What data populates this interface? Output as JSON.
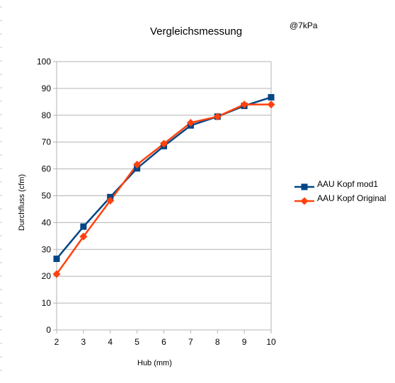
{
  "chart_data": {
    "type": "line",
    "title": "Vergleichsmessung",
    "annotation": "@7kPa",
    "xlabel": "Hub (mm)",
    "ylabel": "Durchfluss (cfm)",
    "x": [
      2,
      3,
      4,
      5,
      6,
      7,
      8,
      9,
      10
    ],
    "xlim": [
      2,
      10
    ],
    "ylim": [
      0,
      100
    ],
    "y_ticks": [
      0,
      10,
      20,
      30,
      40,
      50,
      60,
      70,
      80,
      90,
      100
    ],
    "grid": true,
    "legend_position": "right",
    "series": [
      {
        "name": "AAU Kopf mod1",
        "color": "#004586",
        "marker": "square",
        "values": [
          26.5,
          38.5,
          49.5,
          60.2,
          68.5,
          76.2,
          79.5,
          83.5,
          86.7
        ]
      },
      {
        "name": "AAU Kopf Original",
        "color": "#ff420e",
        "marker": "diamond",
        "values": [
          20.8,
          34.8,
          48.2,
          61.6,
          69.4,
          77.2,
          79.5,
          84.0,
          84.0
        ]
      }
    ]
  }
}
